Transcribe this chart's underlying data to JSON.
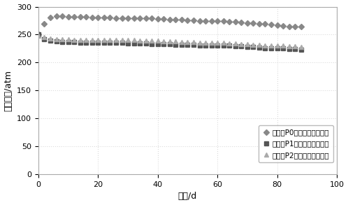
{
  "title": "",
  "xlabel": "时间/d",
  "ylabel": "井底流压/atm",
  "xlim": [
    0,
    100
  ],
  "ylim": [
    0,
    300
  ],
  "xticks": [
    0,
    20,
    40,
    60,
    80,
    100
  ],
  "yticks": [
    0,
    50,
    100,
    150,
    200,
    250,
    300
  ],
  "legend_labels": [
    "注气井P0实测连续井底流压",
    "采油井P1实测连续井底流压",
    "采油井P2实测连续井底流压"
  ],
  "marker_P0": "D",
  "marker_P1": "s",
  "marker_P2": "^",
  "color_P0": "#888888",
  "color_P1": "#555555",
  "color_P2": "#aaaaaa",
  "P0_x": [
    0,
    1,
    2,
    3,
    4,
    5,
    6,
    7,
    8,
    9,
    10,
    11,
    12,
    13,
    14,
    15,
    16,
    17,
    18,
    19,
    20,
    21,
    22,
    23,
    24,
    25,
    26,
    27,
    28,
    29,
    30,
    31,
    32,
    33,
    34,
    35,
    36,
    37,
    38,
    39,
    40,
    41,
    42,
    43,
    44,
    45,
    46,
    47,
    48,
    49,
    50,
    51,
    52,
    53,
    54,
    55,
    56,
    57,
    58,
    59,
    60,
    61,
    62,
    63,
    64,
    65,
    66,
    67,
    68,
    69,
    70,
    71,
    72,
    73,
    74,
    75,
    76,
    77,
    78,
    79,
    80,
    81,
    82,
    83,
    84,
    85,
    86,
    87,
    88
  ],
  "P0_y": [
    250,
    260,
    270,
    278,
    281,
    282,
    283,
    283,
    283,
    283,
    282,
    282,
    282,
    282,
    282,
    282,
    282,
    281,
    281,
    281,
    281,
    281,
    281,
    281,
    281,
    280,
    280,
    280,
    280,
    280,
    280,
    280,
    279,
    279,
    279,
    279,
    279,
    279,
    279,
    278,
    278,
    278,
    278,
    278,
    277,
    277,
    277,
    277,
    277,
    276,
    276,
    276,
    276,
    276,
    275,
    275,
    275,
    275,
    275,
    274,
    274,
    274,
    274,
    273,
    273,
    273,
    273,
    272,
    272,
    272,
    271,
    271,
    271,
    270,
    270,
    269,
    269,
    268,
    268,
    267,
    267,
    266,
    266,
    265,
    265,
    265,
    264,
    264,
    264
  ],
  "P1_x": [
    0,
    1,
    2,
    3,
    4,
    5,
    6,
    7,
    8,
    9,
    10,
    11,
    12,
    13,
    14,
    15,
    16,
    17,
    18,
    19,
    20,
    21,
    22,
    23,
    24,
    25,
    26,
    27,
    28,
    29,
    30,
    31,
    32,
    33,
    34,
    35,
    36,
    37,
    38,
    39,
    40,
    41,
    42,
    43,
    44,
    45,
    46,
    47,
    48,
    49,
    50,
    51,
    52,
    53,
    54,
    55,
    56,
    57,
    58,
    59,
    60,
    61,
    62,
    63,
    64,
    65,
    66,
    67,
    68,
    69,
    70,
    71,
    72,
    73,
    74,
    75,
    76,
    77,
    78,
    79,
    80,
    81,
    82,
    83,
    84,
    85,
    86,
    87,
    88
  ],
  "P1_y": [
    250,
    246,
    242,
    240,
    239,
    238,
    238,
    238,
    237,
    237,
    237,
    237,
    237,
    237,
    236,
    236,
    236,
    236,
    236,
    236,
    236,
    236,
    235,
    235,
    235,
    235,
    235,
    235,
    235,
    235,
    234,
    234,
    234,
    234,
    234,
    234,
    234,
    234,
    233,
    233,
    233,
    233,
    233,
    233,
    233,
    233,
    232,
    232,
    232,
    232,
    232,
    232,
    232,
    232,
    231,
    231,
    231,
    231,
    231,
    231,
    230,
    230,
    230,
    230,
    230,
    229,
    229,
    229,
    229,
    228,
    228,
    228,
    228,
    227,
    227,
    227,
    226,
    226,
    226,
    225,
    225,
    225,
    225,
    224,
    224,
    224,
    224,
    223,
    223
  ],
  "P2_x": [
    0,
    1,
    2,
    3,
    4,
    5,
    6,
    7,
    8,
    9,
    10,
    11,
    12,
    13,
    14,
    15,
    16,
    17,
    18,
    19,
    20,
    21,
    22,
    23,
    24,
    25,
    26,
    27,
    28,
    29,
    30,
    31,
    32,
    33,
    34,
    35,
    36,
    37,
    38,
    39,
    40,
    41,
    42,
    43,
    44,
    45,
    46,
    47,
    48,
    49,
    50,
    51,
    52,
    53,
    54,
    55,
    56,
    57,
    58,
    59,
    60,
    61,
    62,
    63,
    64,
    65,
    66,
    67,
    68,
    69,
    70,
    71,
    72,
    73,
    74,
    75,
    76,
    77,
    78,
    79,
    80,
    81,
    82,
    83,
    84,
    85,
    86,
    87,
    88
  ],
  "P2_y": [
    248,
    247,
    245,
    244,
    243,
    243,
    242,
    242,
    242,
    242,
    242,
    242,
    241,
    241,
    241,
    241,
    241,
    241,
    241,
    241,
    241,
    241,
    241,
    241,
    241,
    240,
    240,
    240,
    240,
    240,
    240,
    240,
    240,
    239,
    239,
    239,
    239,
    239,
    239,
    239,
    239,
    238,
    238,
    238,
    238,
    238,
    238,
    238,
    237,
    237,
    237,
    237,
    237,
    237,
    236,
    236,
    236,
    236,
    236,
    235,
    235,
    235,
    235,
    234,
    234,
    234,
    234,
    233,
    233,
    233,
    233,
    232,
    232,
    232,
    232,
    231,
    231,
    231,
    231,
    230,
    230,
    230,
    230,
    230,
    229,
    229,
    229,
    229,
    228
  ],
  "markersize": 4,
  "markevery": 2,
  "linewidth": 0,
  "legend_fontsize": 7.5,
  "tick_fontsize": 8,
  "label_fontsize": 9,
  "bg_color": "#ffffff",
  "grid_color": "#cccccc",
  "grid_style": ":"
}
